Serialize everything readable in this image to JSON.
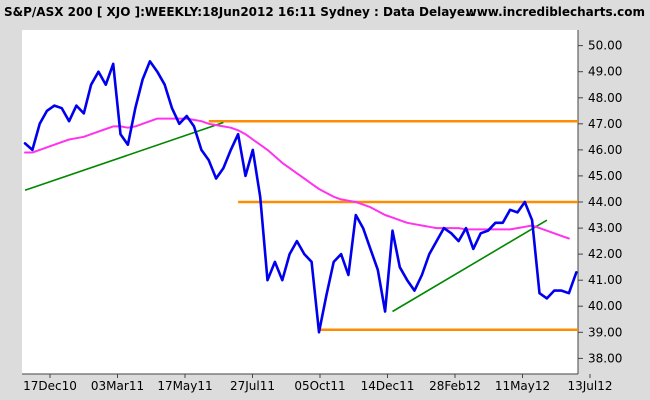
{
  "header": {
    "title": "S&P/ASX 200 [ XJO ]:WEEKLY:18Jun2012 16:11 Sydney : Data Delaye..",
    "site": "www.incrediblecharts.com"
  },
  "colors": {
    "background": "#dcdcdc",
    "plot_background": "#ffffff",
    "price": "#0000ee",
    "moving_average": "#ff33ee",
    "trendline": "#008800",
    "support_resistance": "#ff8c00",
    "axis": "#444444"
  },
  "chart_data": {
    "type": "line",
    "title": "S&P/ASX 200 [ XJO ]:WEEKLY:18Jun2012 16:11 Sydney : Data Delaye..",
    "x_tick_labels": [
      "17Dec10",
      "03Mar11",
      "17May11",
      "27Jul11",
      "05Oct11",
      "14Dec11",
      "28Feb12",
      "11May12",
      "13Jul12"
    ],
    "y_tick_labels": [
      "38.00",
      "39.00",
      "40.00",
      "41.00",
      "42.00",
      "43.00",
      "44.00",
      "45.00",
      "46.00",
      "47.00",
      "48.00",
      "49.00",
      "50.00"
    ],
    "ylim": [
      37.4,
      50.6
    ],
    "grid": false,
    "series": [
      {
        "key": "price",
        "values": [
          46.25,
          46.0,
          47.0,
          47.5,
          47.7,
          47.6,
          47.1,
          47.7,
          47.4,
          48.5,
          49.0,
          48.5,
          49.3,
          46.6,
          46.2,
          47.6,
          48.7,
          49.4,
          49.0,
          48.5,
          47.6,
          47.0,
          47.3,
          46.9,
          46.0,
          45.6,
          44.9,
          45.3,
          46.0,
          46.6,
          45.0,
          46.0,
          44.2,
          41.0,
          41.7,
          41.0,
          42.0,
          42.5,
          42.0,
          41.7,
          39.0,
          40.4,
          41.7,
          42.0,
          41.2,
          43.5,
          43.0,
          42.2,
          41.4,
          39.8,
          42.9,
          41.5,
          41.0,
          40.6,
          41.2,
          42.0,
          42.5,
          43.0,
          42.8,
          42.5,
          43.0,
          42.2,
          42.8,
          42.9,
          43.2,
          43.2,
          43.7,
          43.6,
          44.0,
          43.3,
          40.5,
          40.3,
          40.6,
          40.6,
          40.5,
          41.3
        ]
      },
      {
        "key": "moving_average",
        "values": [
          45.9,
          45.9,
          46.0,
          46.1,
          46.2,
          46.3,
          46.4,
          46.45,
          46.5,
          46.6,
          46.7,
          46.8,
          46.9,
          46.9,
          46.85,
          46.9,
          47.0,
          47.1,
          47.2,
          47.2,
          47.2,
          47.2,
          47.2,
          47.15,
          47.1,
          47.0,
          46.95,
          46.9,
          46.85,
          46.75,
          46.6,
          46.4,
          46.2,
          46.0,
          45.75,
          45.5,
          45.3,
          45.1,
          44.9,
          44.7,
          44.5,
          44.35,
          44.2,
          44.1,
          44.05,
          44.0,
          43.9,
          43.8,
          43.65,
          43.5,
          43.4,
          43.3,
          43.2,
          43.15,
          43.1,
          43.05,
          43.0,
          43.0,
          43.0,
          43.0,
          42.95,
          42.95,
          42.95,
          42.95,
          42.95,
          42.95,
          42.95,
          43.0,
          43.05,
          43.1,
          43.0,
          42.9,
          42.8,
          42.7,
          42.6
        ]
      }
    ],
    "lines": [
      {
        "key": "trendline",
        "kind": "trend",
        "points": [
          [
            0,
            44.45
          ],
          [
            27,
            47.05
          ]
        ]
      },
      {
        "key": "trendline",
        "kind": "trend",
        "points": [
          [
            50,
            39.8
          ],
          [
            71,
            43.3
          ]
        ]
      },
      {
        "key": "support_resistance",
        "kind": "level",
        "points": [
          [
            25,
            47.1
          ],
          [
            79,
            47.1
          ]
        ]
      },
      {
        "key": "support_resistance",
        "kind": "level",
        "points": [
          [
            29,
            44.0
          ],
          [
            79,
            44.0
          ]
        ]
      },
      {
        "key": "support_resistance",
        "kind": "level",
        "points": [
          [
            40,
            39.1
          ],
          [
            79,
            39.1
          ]
        ]
      }
    ]
  }
}
